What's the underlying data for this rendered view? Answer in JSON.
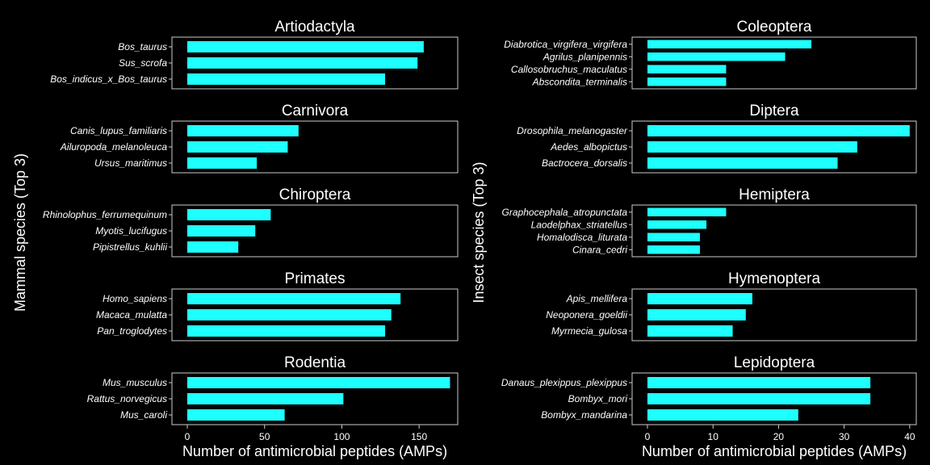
{
  "style": {
    "background": "#000000",
    "bar_color": "#1EFFFF",
    "frame_color": "#CCCCCC",
    "text_color": "#FFFFFF"
  },
  "chart_data": [
    {
      "type": "bar",
      "orientation": "horizontal",
      "ylabel": "Mammal species (Top 3)",
      "xlabel": "Number of antimicrobial peptides (AMPs)",
      "xlim": [
        0,
        175
      ],
      "xticks": [
        0,
        50,
        100,
        150
      ],
      "facets": [
        {
          "title": "Artiodactyla",
          "categories": [
            "Bos_taurus",
            "Sus_scrofa",
            "Bos_indicus_x_Bos_taurus"
          ],
          "values": [
            153,
            149,
            128
          ]
        },
        {
          "title": "Carnivora",
          "categories": [
            "Canis_lupus_familiaris",
            "Ailuropoda_melanoleuca",
            "Ursus_maritimus"
          ],
          "values": [
            72,
            65,
            45
          ]
        },
        {
          "title": "Chiroptera",
          "categories": [
            "Rhinolophus_ferrumequinum",
            "Myotis_lucifugus",
            "Pipistrellus_kuhlii"
          ],
          "values": [
            54,
            44,
            33
          ]
        },
        {
          "title": "Primates",
          "categories": [
            "Homo_sapiens",
            "Macaca_mulatta",
            "Pan_troglodytes"
          ],
          "values": [
            138,
            132,
            128
          ]
        },
        {
          "title": "Rodentia",
          "categories": [
            "Mus_musculus",
            "Rattus_norvegicus",
            "Mus_caroli"
          ],
          "values": [
            170,
            101,
            63
          ]
        }
      ]
    },
    {
      "type": "bar",
      "orientation": "horizontal",
      "ylabel": "Insect species (Top 3)",
      "xlabel": "Number of antimicrobial peptides (AMPs)",
      "xlim": [
        0,
        41
      ],
      "xticks": [
        0,
        10,
        20,
        30,
        40
      ],
      "facets": [
        {
          "title": "Coleoptera",
          "categories": [
            "Diabrotica_virgifera_virgifera",
            "Agrilus_planipennis",
            "Callosobruchus_maculatus",
            "Abscondita_terminalis"
          ],
          "values": [
            25,
            21,
            12,
            12
          ]
        },
        {
          "title": "Diptera",
          "categories": [
            "Drosophila_melanogaster",
            "Aedes_albopictus",
            "Bactrocera_dorsalis"
          ],
          "values": [
            40,
            32,
            29
          ]
        },
        {
          "title": "Hemiptera",
          "categories": [
            "Graphocephala_atropunctata",
            "Laodelphax_striatellus",
            "Homalodisca_liturata",
            "Cinara_cedri"
          ],
          "values": [
            12,
            9,
            8,
            8
          ]
        },
        {
          "title": "Hymenoptera",
          "categories": [
            "Apis_mellifera",
            "Neoponera_goeldii",
            "Myrmecia_gulosa"
          ],
          "values": [
            16,
            15,
            13
          ]
        },
        {
          "title": "Lepidoptera",
          "categories": [
            "Danaus_plexippus_plexippus",
            "Bombyx_mori",
            "Bombyx_mandarina"
          ],
          "values": [
            34,
            34,
            23
          ]
        }
      ]
    }
  ]
}
